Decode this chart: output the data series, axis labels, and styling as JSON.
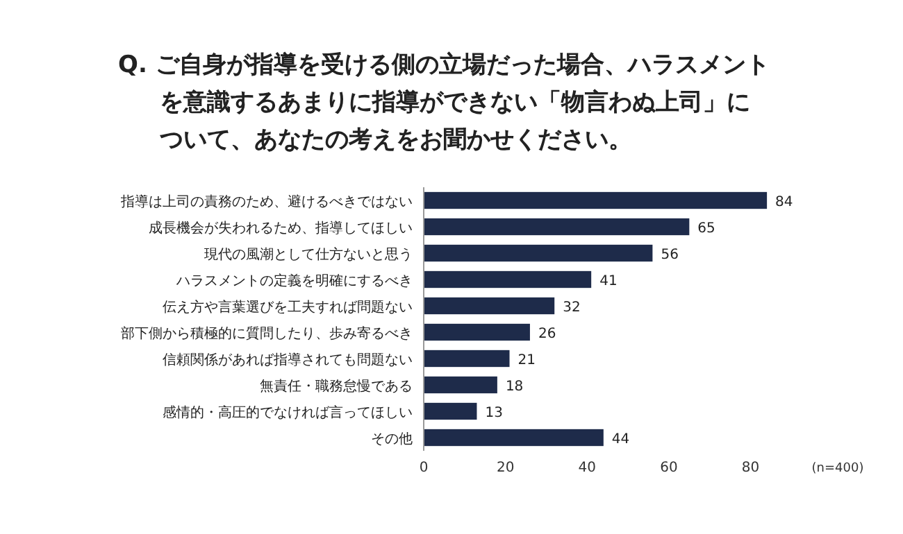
{
  "chart_data": {
    "type": "bar",
    "orientation": "horizontal",
    "title": "Q. ご自身が指導を受ける側の立場だった場合、ハラスメントを意識するあまりに指導ができない「物言わぬ上司」について、あなたの考えをお聞かせください。",
    "categories": [
      "指導は上司の責務のため、避けるべきではない",
      "成長機会が失われるため、指導してほしい",
      "現代の風潮として仕方ないと思う",
      "ハラスメントの定義を明確にするべき",
      "伝え方や言葉選びを工夫すれば問題ない",
      "部下側から積極的に質問したり、歩み寄るべき",
      "信頼関係があれば指導されても問題ない",
      "無責任・職務怠慢である",
      "感情的・高圧的でなければ言ってほしい",
      "その他"
    ],
    "values": [
      84,
      65,
      56,
      41,
      32,
      26,
      21,
      18,
      13,
      44
    ],
    "color": "#1e2b4a",
    "xlim": [
      0,
      85
    ],
    "xticks": [
      0,
      20,
      40,
      60,
      80
    ],
    "data_labels": true,
    "annotations": [
      "(n=400)"
    ]
  }
}
